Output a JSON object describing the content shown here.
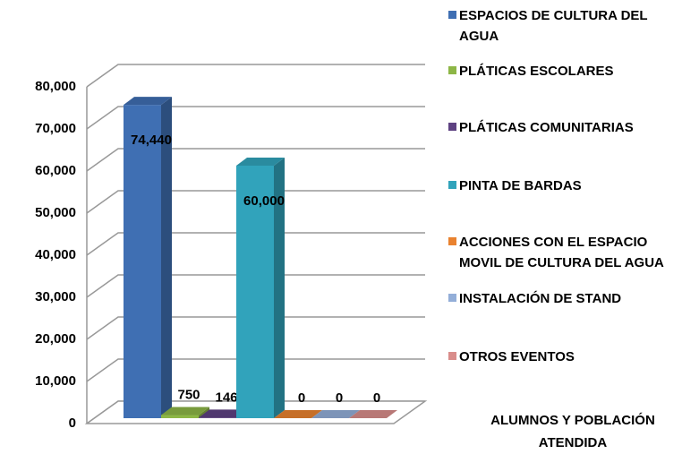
{
  "chart_data": {
    "type": "bar3d",
    "categories": [
      "ALUMNOS Y POBLACIÓN ATENDIDA"
    ],
    "series": [
      {
        "name": "ESPACIOS DE CULTURA DEL AGUA",
        "color": "#3f6fb3",
        "values": [
          74440
        ],
        "value_labels": [
          "74,440"
        ]
      },
      {
        "name": "PLÁTICAS ESCOLARES",
        "color": "#8db646",
        "values": [
          750
        ],
        "value_labels": [
          "750"
        ]
      },
      {
        "name": "PLÁTICAS COMUNITARIAS",
        "color": "#5e4282",
        "values": [
          146
        ],
        "value_labels": [
          "146"
        ]
      },
      {
        "name": "PINTA DE BARDAS",
        "color": "#31a3bb",
        "values": [
          60000
        ],
        "value_labels": [
          "60,000"
        ]
      },
      {
        "name": "ACCIONES CON EL ESPACIO MOVIL DE CULTURA DEL AGUA",
        "color": "#e9822f",
        "values": [
          0
        ],
        "value_labels": [
          "0"
        ]
      },
      {
        "name": "INSTALACIÓN DE STAND",
        "color": "#93aed8",
        "values": [
          0
        ],
        "value_labels": [
          "0"
        ]
      },
      {
        "name": "OTROS EVENTOS",
        "color": "#d98d8b",
        "values": [
          0
        ],
        "value_labels": [
          "0"
        ]
      }
    ],
    "ylim": [
      0,
      80000
    ],
    "yticks": [
      0,
      {
        "value": 10000,
        "label": "10,000"
      },
      {
        "value": 20000,
        "label": "20,000"
      },
      {
        "value": 30000,
        "label": "30,000"
      },
      {
        "value": 40000,
        "label": "40,000"
      },
      {
        "value": 50000,
        "label": "50,000"
      },
      {
        "value": 60000,
        "label": "60,000"
      },
      {
        "value": 70000,
        "label": "70,000"
      },
      {
        "value": 80000,
        "label": "80,000"
      }
    ],
    "grid": true,
    "legend": "right"
  }
}
